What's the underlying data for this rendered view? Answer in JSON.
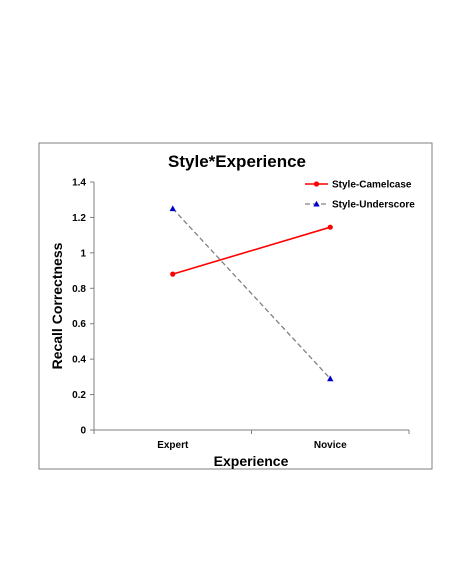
{
  "chart_data": {
    "type": "line",
    "title": "Style*Experience",
    "xlabel": "Experience",
    "ylabel": "Recall Correctness",
    "categories": [
      "Expert",
      "Novice"
    ],
    "ylim": [
      0,
      1.4
    ],
    "yticks": [
      "0",
      "0.2",
      "0.4",
      "0.6",
      "0.8",
      "1",
      "1.2",
      "1.4"
    ],
    "grid": false,
    "legend_position": "top-right",
    "series": [
      {
        "name": "Style-Camelcase",
        "values": [
          0.88,
          1.145
        ],
        "color": "#ff0000",
        "line_style": "solid",
        "marker": "circle"
      },
      {
        "name": "Style-Underscore",
        "values": [
          1.25,
          0.29
        ],
        "color": "#808080",
        "marker_color": "#0000cc",
        "line_style": "dashed",
        "marker": "triangle"
      }
    ]
  }
}
